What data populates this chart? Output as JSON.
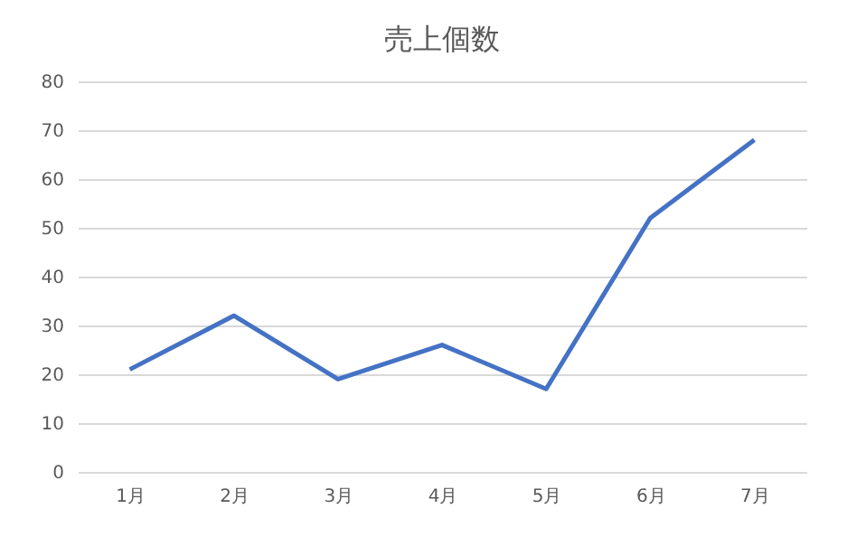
{
  "chart_data": {
    "type": "line",
    "title": "売上個数",
    "categories": [
      "1月",
      "2月",
      "3月",
      "4月",
      "5月",
      "6月",
      "7月"
    ],
    "series": [
      {
        "color": "#4472c4",
        "values": [
          21,
          32,
          19,
          26,
          17,
          52,
          68
        ]
      }
    ],
    "ylim": [
      0,
      80
    ],
    "yticks": [
      0,
      10,
      20,
      30,
      40,
      50,
      60,
      70,
      80
    ],
    "grid": "y",
    "legend": false,
    "marker": "none",
    "line_style": "solid"
  }
}
